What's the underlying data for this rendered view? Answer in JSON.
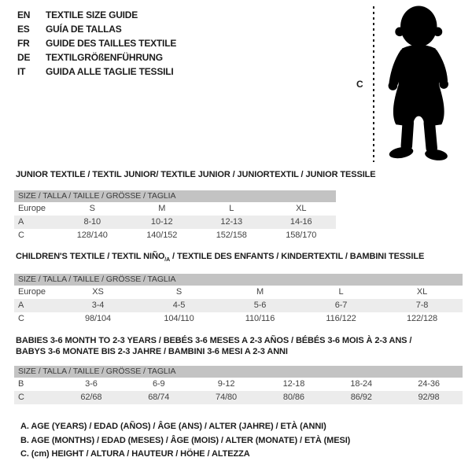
{
  "languages": [
    {
      "code": "EN",
      "label": "TEXTILE SIZE GUIDE"
    },
    {
      "code": "ES",
      "label": "GUÍA DE TALLAS"
    },
    {
      "code": "FR",
      "label": "GUIDE DES TAILLES TEXTILE"
    },
    {
      "code": "DE",
      "label": "TEXTILGRÖßENFÜHRUNG"
    },
    {
      "code": "IT",
      "label": "GUIDA ALLE TAGLIE TESSILI"
    }
  ],
  "figure": {
    "marker_label": "C",
    "description": "standing toddler silhouette with dotted height line"
  },
  "tables": [
    {
      "title_lines": [
        [
          {
            "text": "JUNIOR TEXTILE / TEXTIL JUNIOR/ TEXTILE JUNIOR / JUNIORTEXTIL / JUNIOR TESSILE"
          }
        ]
      ],
      "size_header": "SIZE / TALLA / TAILLE / GRÖSSE / TAGLIA",
      "rows": [
        {
          "label": "Europe",
          "values": [
            "S",
            "M",
            "L",
            "XL"
          ],
          "shaded": false
        },
        {
          "label": "A",
          "values": [
            "8-10",
            "10-12",
            "12-13",
            "14-16"
          ],
          "shaded": true
        },
        {
          "label": "C",
          "values": [
            "128/140",
            "140/152",
            "152/158",
            "158/170"
          ],
          "shaded": false
        }
      ]
    },
    {
      "title_lines": [
        [
          {
            "text": "CHILDREN'S TEXTILE / TEXTIL NIÑO"
          },
          {
            "text": "/A",
            "sub": true
          },
          {
            "text": " / TEXTILE DES ENFANTS / KINDERTEXTIL / BAMBINI TESSILE"
          }
        ]
      ],
      "size_header": "SIZE / TALLA / TAILLE / GRÖSSE / TAGLIA",
      "rows": [
        {
          "label": "Europe",
          "values": [
            "XS",
            "S",
            "M",
            "L",
            "XL"
          ],
          "shaded": false
        },
        {
          "label": "A",
          "values": [
            "3-4",
            "4-5",
            "5-6",
            "6-7",
            "7-8"
          ],
          "shaded": true
        },
        {
          "label": "C",
          "values": [
            "98/104",
            "104/110",
            "110/116",
            "116/122",
            "122/128"
          ],
          "shaded": false
        }
      ]
    },
    {
      "title_lines": [
        [
          {
            "text": "BABIES 3-6 MONTH TO 2-3 YEARS / BEBÉS 3-6 MESES A 2-3 AÑOS / BÉBÉS 3-6 MOIS À 2-3 ANS /"
          }
        ],
        [
          {
            "text": "BABYS 3-6 MONATE BIS 2-3 JAHRE / BAMBINI 3-6 MESI A 2-3 ANNI"
          }
        ]
      ],
      "size_header": "SIZE / TALLA / TAILLE / GRÖSSE / TAGLIA",
      "rows": [
        {
          "label": "B",
          "values": [
            "3-6",
            "6-9",
            "9-12",
            "12-18",
            "18-24",
            "24-36"
          ],
          "shaded": false
        },
        {
          "label": "C",
          "values": [
            "62/68",
            "68/74",
            "74/80",
            "80/86",
            "86/92",
            "92/98"
          ],
          "shaded": true
        }
      ]
    }
  ],
  "legend": [
    "A. AGE (YEARS) / EDAD (AÑOS) / ÂGE (ANS) / ALTER (JAHRE) / ETÀ (ANNI)",
    "B. AGE (MONTHS) / EDAD (MESES) / ÂGE (MOIS) / ALTER (MONATE) / ETÀ (MESI)",
    "C. (cm) HEIGHT / ALTURA / HAUTEUR / HÖHE / ALTEZZA"
  ],
  "colors": {
    "size_header_bar": "#c3c3c3",
    "shaded_row": "#ececec",
    "table_text": "#434343",
    "strong_text": "#1c1c1c",
    "silhouette": "#000000"
  }
}
